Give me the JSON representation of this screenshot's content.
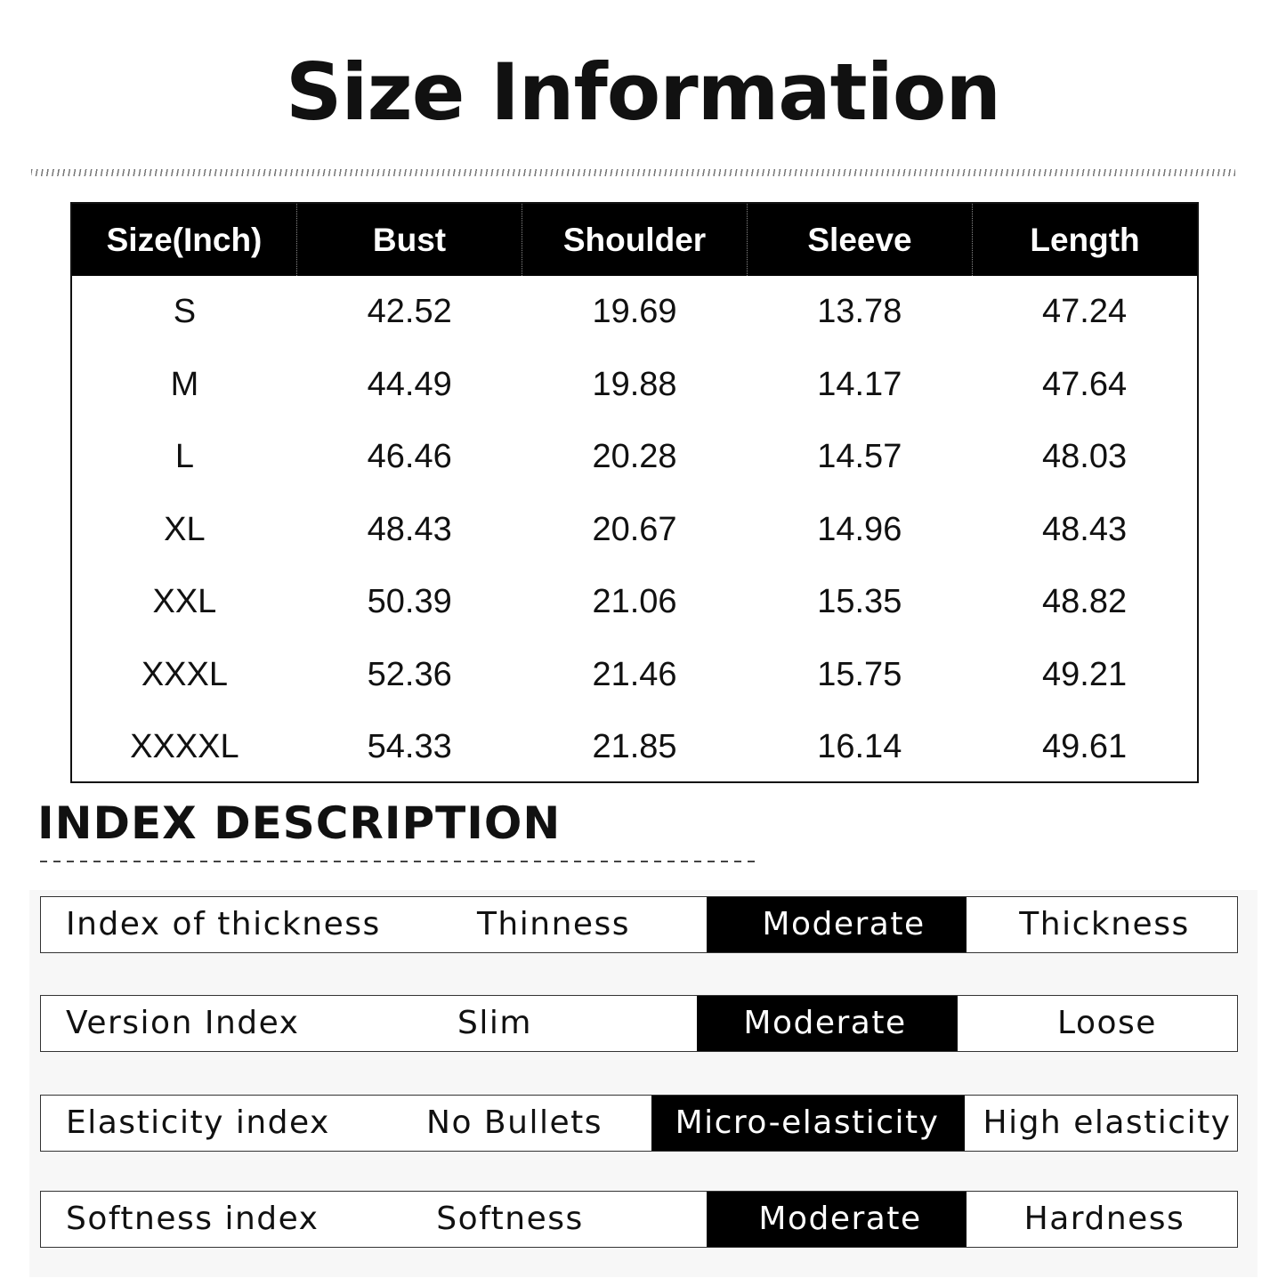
{
  "title": "Size Information",
  "size_table": {
    "headers": [
      "Size(Inch)",
      "Bust",
      "Shoulder",
      "Sleeve",
      "Length"
    ],
    "rows": [
      [
        "S",
        "42.52",
        "19.69",
        "13.78",
        "47.24"
      ],
      [
        "M",
        "44.49",
        "19.88",
        "14.17",
        "47.64"
      ],
      [
        "L",
        "46.46",
        "20.28",
        "14.57",
        "48.03"
      ],
      [
        "XL",
        "48.43",
        "20.67",
        "14.96",
        "48.43"
      ],
      [
        "XXL",
        "50.39",
        "21.06",
        "15.35",
        "48.82"
      ],
      [
        "XXXL",
        "52.36",
        "21.46",
        "15.75",
        "49.21"
      ],
      [
        "XXXXL",
        "54.33",
        "21.85",
        "16.14",
        "49.61"
      ]
    ]
  },
  "index_description": {
    "title": "INDEX DESCRIPTION",
    "rows": [
      {
        "label": "Index of thickness",
        "options": [
          "Thinness",
          "Moderate",
          "Thickness"
        ],
        "selected": "Moderate"
      },
      {
        "label": "Version Index",
        "options": [
          "Slim",
          "Moderate",
          "Loose"
        ],
        "selected": "Moderate"
      },
      {
        "label": "Elasticity index",
        "options": [
          "No Bullets",
          "Micro-elasticity",
          "High elasticity"
        ],
        "selected": "Micro-elasticity"
      },
      {
        "label": "Softness index",
        "options": [
          "Softness",
          "Moderate",
          "Hardness"
        ],
        "selected": "Moderate"
      }
    ]
  },
  "colors": {
    "highlight": "#000000",
    "text": "#111111",
    "background": "#ffffff"
  }
}
